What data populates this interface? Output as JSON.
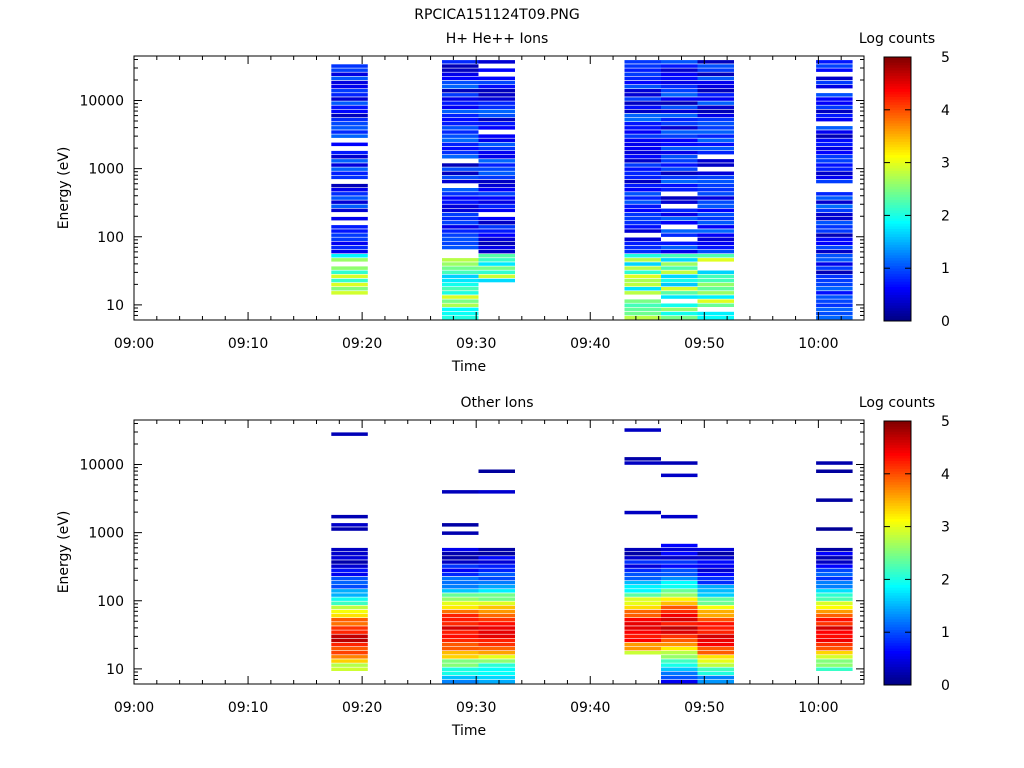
{
  "figure_title": "RPCICA151124T09.PNG",
  "colorbar": {
    "label": "Log counts",
    "ticks": [
      "0",
      "1",
      "2",
      "3",
      "4",
      "5"
    ],
    "range": [
      0,
      5
    ],
    "colormap": "jet"
  },
  "chart_data": [
    {
      "type": "heatmap",
      "title": "H+ He++ Ions",
      "xlabel": "Time",
      "ylabel": "Energy (eV)",
      "x_unit": "minutes after 09:00",
      "xlim": [
        0,
        64
      ],
      "x_ticks": [
        "09:00",
        "09:10",
        "09:20",
        "09:30",
        "09:40",
        "09:50",
        "10:00"
      ],
      "ylim": [
        6,
        45000
      ],
      "y_scale": "log",
      "y_ticks": [
        "10",
        "100",
        "1000",
        "10000"
      ],
      "colorbar_label": "Log counts",
      "clim": [
        0,
        5
      ],
      "columns": [
        {
          "t0": 17.3,
          "t1": 20.5,
          "seed": 3,
          "profile": "hp_A"
        },
        {
          "t0": 27.0,
          "t1": 30.2,
          "seed": 11,
          "profile": "hp_B"
        },
        {
          "t0": 30.2,
          "t1": 33.4,
          "seed": 17,
          "profile": "hp_C"
        },
        {
          "t0": 43.0,
          "t1": 46.2,
          "seed": 23,
          "profile": "hp_D"
        },
        {
          "t0": 46.2,
          "t1": 49.4,
          "seed": 29,
          "profile": "hp_E"
        },
        {
          "t0": 49.4,
          "t1": 52.6,
          "seed": 31,
          "profile": "hp_F"
        },
        {
          "t0": 59.8,
          "t1": 63.0,
          "seed": 37,
          "profile": "hp_G"
        }
      ]
    },
    {
      "type": "heatmap",
      "title": "Other Ions",
      "xlabel": "Time",
      "ylabel": "Energy (eV)",
      "x_unit": "minutes after 09:00",
      "xlim": [
        0,
        64
      ],
      "x_ticks": [
        "09:00",
        "09:10",
        "09:20",
        "09:30",
        "09:40",
        "09:50",
        "10:00"
      ],
      "ylim": [
        6,
        45000
      ],
      "y_scale": "log",
      "y_ticks": [
        "10",
        "100",
        "1000",
        "10000"
      ],
      "colorbar_label": "Log counts",
      "clim": [
        0,
        5
      ],
      "columns": [
        {
          "t0": 17.3,
          "t1": 20.5,
          "seed": 41,
          "profile": "ot_A"
        },
        {
          "t0": 27.0,
          "t1": 30.2,
          "seed": 43,
          "profile": "ot_B"
        },
        {
          "t0": 30.2,
          "t1": 33.4,
          "seed": 47,
          "profile": "ot_C"
        },
        {
          "t0": 43.0,
          "t1": 46.2,
          "seed": 53,
          "profile": "ot_D"
        },
        {
          "t0": 46.2,
          "t1": 49.4,
          "seed": 59,
          "profile": "ot_E"
        },
        {
          "t0": 49.4,
          "t1": 52.6,
          "seed": 61,
          "profile": "ot_F"
        },
        {
          "t0": 59.8,
          "t1": 63.0,
          "seed": 67,
          "profile": "ot_G"
        }
      ]
    }
  ]
}
